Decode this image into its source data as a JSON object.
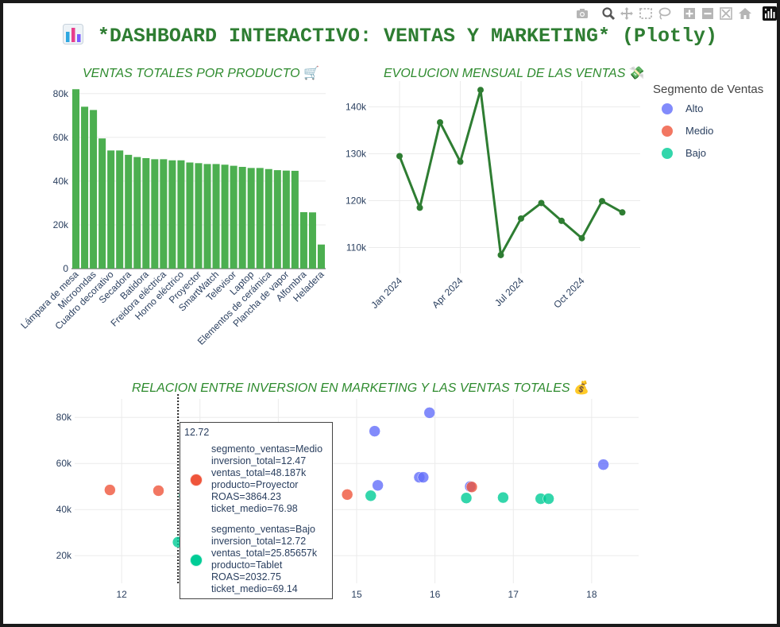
{
  "header": {
    "title": "*DASHBOARD INTERACTIVO: VENTAS Y MARKETING* (Plotly)"
  },
  "modebar": [
    "camera-icon",
    "zoom-icon",
    "pan-icon",
    "box-select-icon",
    "lasso-select-icon",
    "zoom-in-icon",
    "zoom-out-icon",
    "autoscale-icon",
    "reset-axes-icon",
    "plotly-logo-icon"
  ],
  "panels": {
    "bar_title": "VENTAS TOTALES POR PRODUCTO",
    "bar_emoji": "🛒",
    "line_title": "EVOLUCION MENSUAL DE LAS VENTAS",
    "line_emoji": "💸",
    "scatter_title": "RELACION ENTRE INVERSION EN MARKETING Y LAS VENTAS TOTALES",
    "scatter_emoji": "💰"
  },
  "legend": {
    "title": "Segmento de Ventas",
    "items": [
      {
        "label": "Alto",
        "color": "#636efa"
      },
      {
        "label": "Medio",
        "color": "#ef553b"
      },
      {
        "label": "Bajo",
        "color": "#00cc96"
      }
    ]
  },
  "colors": {
    "bar": "#4caf50",
    "line": "#2e7d32",
    "title": "#2e7d32"
  },
  "tooltip": {
    "x_header": "12.72",
    "items": [
      {
        "color": "#ef553b",
        "lines": [
          "segmento_ventas=Medio",
          "inversion_total=12.47",
          "ventas_total=48.187k",
          "producto=Proyector",
          "ROAS=3864.23",
          "ticket_medio=76.98"
        ]
      },
      {
        "color": "#00cc96",
        "lines": [
          "segmento_ventas=Bajo",
          "inversion_total=12.72",
          "ventas_total=25.85657k",
          "producto=Tablet",
          "ROAS=2032.75",
          "ticket_medio=69.14"
        ]
      }
    ]
  },
  "chart_data": [
    {
      "type": "bar",
      "title": "VENTAS TOTALES POR PRODUCTO 🛒",
      "categories": [
        "Lámpara de mesa",
        "",
        "Microondas",
        "",
        "Cuadro decorativo",
        "",
        "Secadora",
        "",
        "Batidora",
        "",
        "Freidora eléctrica",
        "",
        "Horno eléctrico",
        "",
        "Proyector",
        "",
        "SmartWatch",
        "",
        "Televisor",
        "",
        "Laptop",
        "",
        "Elementos de cerámica",
        "",
        "Plancha de vapor",
        "",
        "Alfombra",
        "",
        "Heladera"
      ],
      "values": [
        82000,
        74000,
        72500,
        59500,
        54000,
        54000,
        52000,
        51000,
        50500,
        50000,
        50000,
        49500,
        49500,
        48500,
        48200,
        47800,
        47800,
        47500,
        47000,
        46500,
        46000,
        46000,
        45500,
        45000,
        44800,
        44700,
        25800,
        25700,
        11000
      ],
      "yticks": [
        "0",
        "20k",
        "40k",
        "60k",
        "80k"
      ],
      "ylim": [
        0,
        85000
      ]
    },
    {
      "type": "line",
      "title": "EVOLUCION MENSUAL DE LAS VENTAS 💸",
      "x": [
        "2024-01",
        "2024-02",
        "2024-03",
        "2024-04",
        "2024-05",
        "2024-06",
        "2024-07",
        "2024-08",
        "2024-09",
        "2024-10",
        "2024-11",
        "2024-12"
      ],
      "y": [
        129500,
        118500,
        136700,
        128300,
        143600,
        108400,
        116200,
        119500,
        115700,
        112000,
        119900,
        117500
      ],
      "xticks": [
        "Jan 2024",
        "Apr 2024",
        "Jul 2024",
        "Oct 2024"
      ],
      "yticks": [
        "110k",
        "120k",
        "130k",
        "140k"
      ],
      "ylim": [
        104500,
        145500
      ]
    },
    {
      "type": "scatter",
      "title": "RELACION ENTRE INVERSION EN MARKETING Y LAS VENTAS TOTALES 💰",
      "xticks": [
        "12",
        "13",
        "14",
        "15",
        "16",
        "17",
        "18"
      ],
      "yticks": [
        "20k",
        "40k",
        "60k",
        "80k"
      ],
      "xlim": [
        11.4,
        18.6
      ],
      "ylim": [
        8000,
        88000
      ],
      "spike_x": 12.72,
      "series": [
        {
          "name": "Alto",
          "color": "#636efa",
          "points": [
            [
              15.23,
              74000
            ],
            [
              15.27,
              50500
            ],
            [
              15.93,
              82000
            ],
            [
              15.8,
              54000
            ],
            [
              15.85,
              54000
            ],
            [
              16.45,
              50000
            ],
            [
              18.15,
              59500
            ]
          ]
        },
        {
          "name": "Medio",
          "color": "#ef553b",
          "points": [
            [
              11.85,
              48500
            ],
            [
              12.47,
              48187
            ],
            [
              14.88,
              46500
            ],
            [
              16.47,
              49800
            ]
          ]
        },
        {
          "name": "Bajo",
          "color": "#00cc96",
          "points": [
            [
              12.72,
              25857
            ],
            [
              12.8,
              46000
            ],
            [
              15.18,
              46000
            ],
            [
              16.4,
              45000
            ],
            [
              16.87,
              45200
            ],
            [
              17.35,
              44700
            ],
            [
              17.45,
              44700
            ]
          ]
        }
      ]
    }
  ]
}
